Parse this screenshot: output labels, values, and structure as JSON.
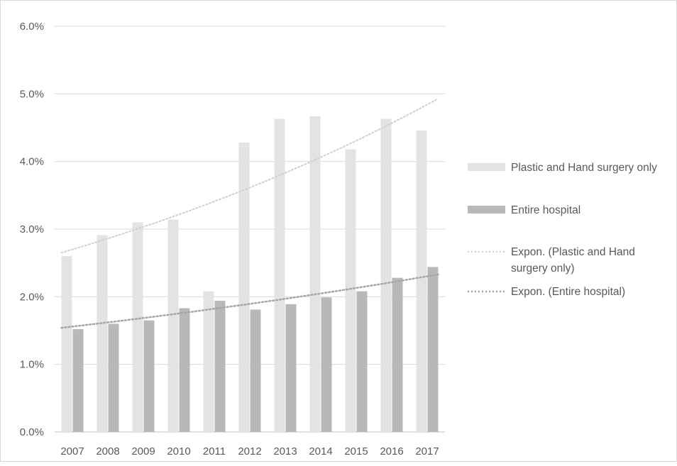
{
  "chart_data": {
    "type": "bar",
    "categories": [
      "2007",
      "2008",
      "2009",
      "2010",
      "2011",
      "2012",
      "2013",
      "2014",
      "2015",
      "2016",
      "2017"
    ],
    "series": [
      {
        "name": "Plastic and Hand surgery only",
        "values": [
          2.6,
          2.91,
          3.1,
          3.14,
          2.08,
          4.28,
          4.63,
          4.67,
          4.18,
          4.63,
          4.46
        ],
        "color": "#e3e3e3"
      },
      {
        "name": "Entire hospital",
        "values": [
          1.52,
          1.6,
          1.65,
          1.83,
          1.94,
          1.81,
          1.89,
          1.99,
          2.08,
          2.28,
          2.44
        ],
        "color": "#b8b8b8"
      }
    ],
    "trendlines": [
      {
        "name": "Expon. (Plastic and Hand surgery only)",
        "type": "exponential",
        "start": 2.65,
        "end": 4.93,
        "color": "#d0d0d0",
        "style": "dotted"
      },
      {
        "name": "Expon. (Entire hospital)",
        "type": "exponential",
        "start": 1.54,
        "end": 2.33,
        "color": "#a6a6a6",
        "style": "dotted"
      }
    ],
    "y_ticks": [
      "0.0%",
      "1.0%",
      "2.0%",
      "3.0%",
      "4.0%",
      "5.0%",
      "6.0%"
    ],
    "ylim": [
      0,
      6
    ],
    "y_unit": "%",
    "grid": true,
    "legend_position": "right"
  },
  "legend": {
    "series1": "Plastic and Hand surgery only",
    "series2": "Entire hospital",
    "trend1_line1": "Expon. (Plastic and Hand",
    "trend1_line2": "surgery only)",
    "trend2": "Expon. (Entire hospital)"
  }
}
